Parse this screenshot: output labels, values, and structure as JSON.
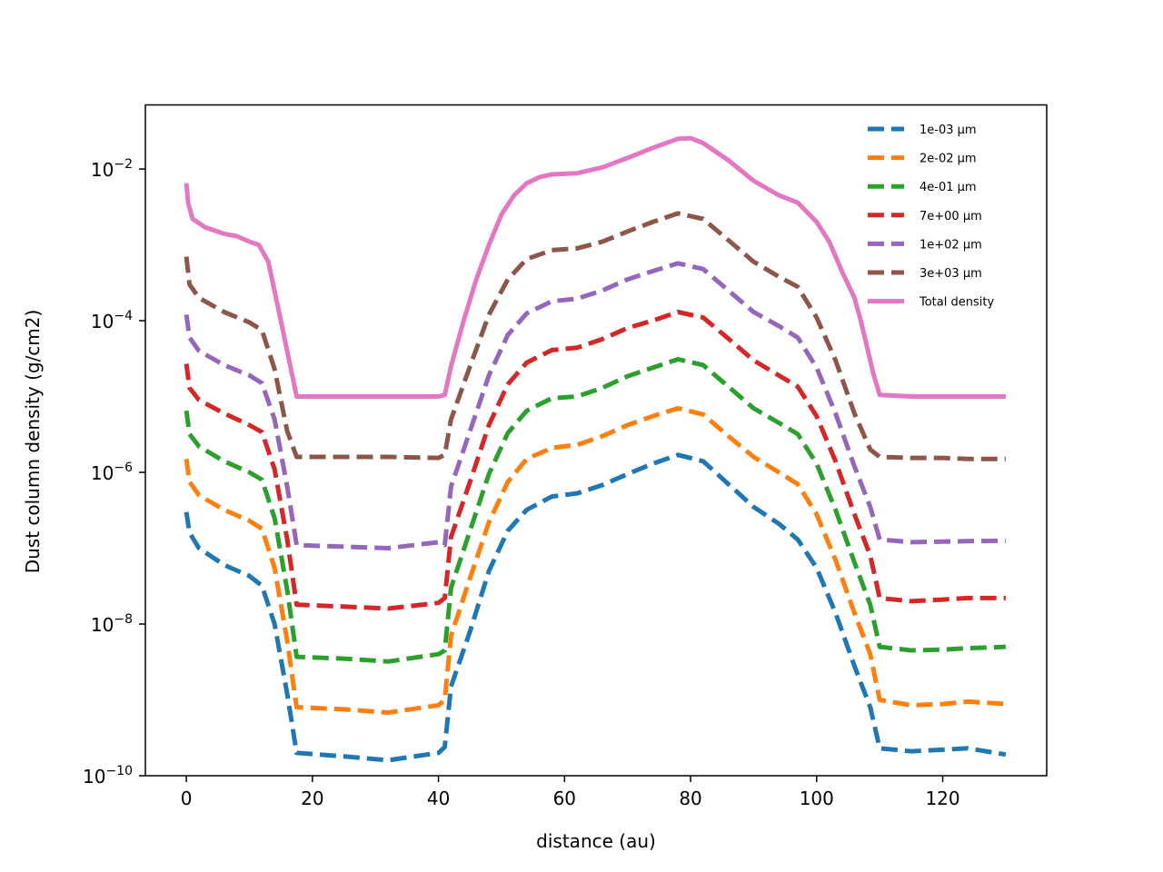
{
  "chart_data": {
    "type": "line",
    "title": "",
    "xlabel": "distance (au)",
    "ylabel": "Dust column density (g/cm2)",
    "xlim": [
      -6.5,
      136.5
    ],
    "ylim": [
      1e-10,
      0.07
    ],
    "yscale": "log",
    "x_ticks": [
      0,
      20,
      40,
      60,
      80,
      100,
      120
    ],
    "y_ticks": [
      {
        "value": 1e-10,
        "base": "10",
        "exp": "−10"
      },
      {
        "value": 1e-08,
        "base": "10",
        "exp": "−8"
      },
      {
        "value": 1e-06,
        "base": "10",
        "exp": "−6"
      },
      {
        "value": 0.0001,
        "base": "10",
        "exp": "−4"
      },
      {
        "value": 0.01,
        "base": "10",
        "exp": "−2"
      }
    ],
    "grid": false,
    "legend_position": "top-right",
    "series": [
      {
        "name": "1e-03 μm",
        "color": "#1f77b4",
        "style": "dashed",
        "points": [
          [
            0,
            3e-07
          ],
          [
            0.5,
            1.6e-07
          ],
          [
            2,
            1e-07
          ],
          [
            6,
            6e-08
          ],
          [
            10,
            4.3e-08
          ],
          [
            12,
            3.2e-08
          ],
          [
            14,
            1e-08
          ],
          [
            16,
            1.2e-09
          ],
          [
            17.5,
            2e-10
          ],
          [
            25,
            1.8e-10
          ],
          [
            32,
            1.6e-10
          ],
          [
            40,
            2e-10
          ],
          [
            41,
            2.4e-10
          ],
          [
            42,
            1.5e-09
          ],
          [
            45,
            8e-09
          ],
          [
            48,
            5e-08
          ],
          [
            51,
            1.7e-07
          ],
          [
            54,
            3.2e-07
          ],
          [
            58,
            4.8e-07
          ],
          [
            62,
            5.3e-07
          ],
          [
            66,
            6.8e-07
          ],
          [
            70,
            9.5e-07
          ],
          [
            74,
            1.3e-06
          ],
          [
            78,
            1.7e-06
          ],
          [
            82,
            1.4e-06
          ],
          [
            86,
            7e-07
          ],
          [
            90,
            3.5e-07
          ],
          [
            94,
            2.1e-07
          ],
          [
            97,
            1.3e-07
          ],
          [
            100,
            5.5e-08
          ],
          [
            103,
            1.4e-08
          ],
          [
            106,
            2.8e-09
          ],
          [
            108.5,
            8e-10
          ],
          [
            110,
            2.3e-10
          ],
          [
            115,
            2.1e-10
          ],
          [
            120,
            2.2e-10
          ],
          [
            124,
            2.3e-10
          ],
          [
            130,
            1.9e-10
          ]
        ]
      },
      {
        "name": "2e-02 μm",
        "color": "#ff7f0e",
        "style": "dashed",
        "points": [
          [
            0,
            1.5e-06
          ],
          [
            0.5,
            7.5e-07
          ],
          [
            2,
            5e-07
          ],
          [
            6,
            3.2e-07
          ],
          [
            10,
            2.3e-07
          ],
          [
            12,
            1.8e-07
          ],
          [
            14,
            5.5e-08
          ],
          [
            16,
            6e-09
          ],
          [
            17.5,
            8e-10
          ],
          [
            25,
            7.5e-10
          ],
          [
            32,
            6.8e-10
          ],
          [
            40,
            8.5e-10
          ],
          [
            41,
            1e-09
          ],
          [
            42,
            7e-09
          ],
          [
            45,
            4e-08
          ],
          [
            48,
            2.2e-07
          ],
          [
            51,
            7.5e-07
          ],
          [
            54,
            1.5e-06
          ],
          [
            58,
            2.1e-06
          ],
          [
            62,
            2.3e-06
          ],
          [
            66,
            3e-06
          ],
          [
            70,
            4.2e-06
          ],
          [
            74,
            5.5e-06
          ],
          [
            78,
            7e-06
          ],
          [
            82,
            5.8e-06
          ],
          [
            86,
            3e-06
          ],
          [
            90,
            1.6e-06
          ],
          [
            94,
            1e-06
          ],
          [
            97,
            7e-07
          ],
          [
            100,
            2.8e-07
          ],
          [
            103,
            7e-08
          ],
          [
            106,
            1.4e-08
          ],
          [
            108.5,
            4e-09
          ],
          [
            110,
            1e-09
          ],
          [
            115,
            8.5e-10
          ],
          [
            120,
            8.8e-10
          ],
          [
            124,
            9.5e-10
          ],
          [
            130,
            8.8e-10
          ]
        ]
      },
      {
        "name": "4e-01 μm",
        "color": "#2ca02c",
        "style": "dashed",
        "points": [
          [
            0,
            6.5e-06
          ],
          [
            0.5,
            3.2e-06
          ],
          [
            2,
            2.2e-06
          ],
          [
            6,
            1.4e-06
          ],
          [
            10,
            1e-06
          ],
          [
            12,
            8e-07
          ],
          [
            14,
            2.5e-07
          ],
          [
            16,
            2.8e-08
          ],
          [
            17.5,
            3.7e-09
          ],
          [
            25,
            3.5e-09
          ],
          [
            32,
            3.2e-09
          ],
          [
            40,
            4e-09
          ],
          [
            41,
            4.5e-09
          ],
          [
            42,
            3e-08
          ],
          [
            45,
            1.7e-07
          ],
          [
            48,
            9.5e-07
          ],
          [
            51,
            3.3e-06
          ],
          [
            54,
            6.5e-06
          ],
          [
            58,
            9.5e-06
          ],
          [
            62,
            1e-05
          ],
          [
            66,
            1.3e-05
          ],
          [
            70,
            1.85e-05
          ],
          [
            74,
            2.4e-05
          ],
          [
            78,
            3.1e-05
          ],
          [
            82,
            2.6e-05
          ],
          [
            86,
            1.35e-05
          ],
          [
            90,
            7e-06
          ],
          [
            94,
            4.5e-06
          ],
          [
            97,
            3.2e-06
          ],
          [
            100,
            1.3e-06
          ],
          [
            103,
            3.2e-07
          ],
          [
            106,
            6.5e-08
          ],
          [
            108.5,
            1.8e-08
          ],
          [
            110,
            5e-09
          ],
          [
            115,
            4.5e-09
          ],
          [
            120,
            4.6e-09
          ],
          [
            124,
            4.8e-09
          ],
          [
            130,
            5e-09
          ]
        ]
      },
      {
        "name": "7e+00 μm",
        "color": "#d62728",
        "style": "dashed",
        "points": [
          [
            0,
            2.7e-05
          ],
          [
            0.5,
            1.3e-05
          ],
          [
            2,
            9e-06
          ],
          [
            6,
            6e-06
          ],
          [
            10,
            4.2e-06
          ],
          [
            12,
            3.4e-06
          ],
          [
            14,
            1.1e-06
          ],
          [
            16,
            1.3e-07
          ],
          [
            17.5,
            1.8e-08
          ],
          [
            25,
            1.7e-08
          ],
          [
            32,
            1.6e-08
          ],
          [
            40,
            1.9e-08
          ],
          [
            41,
            2.2e-08
          ],
          [
            42,
            1.4e-07
          ],
          [
            45,
            7.5e-07
          ],
          [
            48,
            4.2e-06
          ],
          [
            51,
            1.45e-05
          ],
          [
            54,
            2.8e-05
          ],
          [
            58,
            4.1e-05
          ],
          [
            62,
            4.4e-05
          ],
          [
            66,
            5.7e-05
          ],
          [
            70,
            8e-05
          ],
          [
            74,
            0.0001
          ],
          [
            78,
            0.00013
          ],
          [
            82,
            0.00011
          ],
          [
            86,
            5.8e-05
          ],
          [
            90,
            3e-05
          ],
          [
            94,
            1.9e-05
          ],
          [
            97,
            1.35e-05
          ],
          [
            100,
            5.5e-06
          ],
          [
            103,
            1.4e-06
          ],
          [
            106,
            2.8e-07
          ],
          [
            108.5,
            8e-08
          ],
          [
            110,
            2.2e-08
          ],
          [
            115,
            2e-08
          ],
          [
            120,
            2.1e-08
          ],
          [
            124,
            2.2e-08
          ],
          [
            130,
            2.2e-08
          ]
        ]
      },
      {
        "name": "1e+02 μm",
        "color": "#9467bd",
        "style": "dashed",
        "points": [
          [
            0,
            0.00012
          ],
          [
            0.5,
            6e-05
          ],
          [
            2,
            4e-05
          ],
          [
            6,
            2.6e-05
          ],
          [
            10,
            1.9e-05
          ],
          [
            12,
            1.5e-05
          ],
          [
            14,
            5e-06
          ],
          [
            16,
            6.5e-07
          ],
          [
            17.5,
            1.1e-07
          ],
          [
            25,
            1.05e-07
          ],
          [
            32,
            1e-07
          ],
          [
            40,
            1.2e-07
          ],
          [
            41,
            1.1e-07
          ],
          [
            42,
            6.5e-07
          ],
          [
            45,
            3.5e-06
          ],
          [
            48,
            1.9e-05
          ],
          [
            51,
            6.5e-05
          ],
          [
            54,
            0.000125
          ],
          [
            58,
            0.00018
          ],
          [
            62,
            0.000195
          ],
          [
            66,
            0.00025
          ],
          [
            70,
            0.00035
          ],
          [
            74,
            0.00045
          ],
          [
            78,
            0.00057
          ],
          [
            82,
            0.00048
          ],
          [
            86,
            0.00025
          ],
          [
            90,
            0.00013
          ],
          [
            94,
            8.5e-05
          ],
          [
            97,
            6e-05
          ],
          [
            100,
            2.4e-05
          ],
          [
            103,
            6e-06
          ],
          [
            106,
            1.2e-06
          ],
          [
            108.5,
            3.5e-07
          ],
          [
            110,
            1.3e-07
          ],
          [
            115,
            1.2e-07
          ],
          [
            120,
            1.22e-07
          ],
          [
            124,
            1.24e-07
          ],
          [
            130,
            1.25e-07
          ]
        ]
      },
      {
        "name": "3e+03 μm",
        "color": "#8c564b",
        "style": "dashed",
        "points": [
          [
            0,
            0.0007
          ],
          [
            0.5,
            0.0003
          ],
          [
            2,
            0.0002
          ],
          [
            6,
            0.00013
          ],
          [
            10,
            9.5e-05
          ],
          [
            12,
            7.5e-05
          ],
          [
            14,
            2.3e-05
          ],
          [
            16,
            3.5e-06
          ],
          [
            17.5,
            1.6e-06
          ],
          [
            25,
            1.6e-06
          ],
          [
            32,
            1.6e-06
          ],
          [
            40,
            1.55e-06
          ],
          [
            41,
            1.7e-06
          ],
          [
            42,
            5e-06
          ],
          [
            45,
            2.5e-05
          ],
          [
            48,
            0.00012
          ],
          [
            51,
            0.00035
          ],
          [
            54,
            0.00065
          ],
          [
            58,
            0.00085
          ],
          [
            62,
            0.0009
          ],
          [
            66,
            0.0011
          ],
          [
            70,
            0.0015
          ],
          [
            74,
            0.002
          ],
          [
            78,
            0.0026
          ],
          [
            82,
            0.0022
          ],
          [
            86,
            0.00115
          ],
          [
            90,
            0.0006
          ],
          [
            94,
            0.00038
          ],
          [
            97,
            0.00028
          ],
          [
            100,
            0.00011
          ],
          [
            103,
            3e-05
          ],
          [
            106,
            6e-06
          ],
          [
            108.5,
            2e-06
          ],
          [
            110,
            1.6e-06
          ],
          [
            115,
            1.55e-06
          ],
          [
            120,
            1.55e-06
          ],
          [
            124,
            1.5e-06
          ],
          [
            130,
            1.5e-06
          ]
        ]
      },
      {
        "name": "Total density",
        "color": "#e377c2",
        "style": "solid",
        "points": [
          [
            0,
            0.0065
          ],
          [
            0.3,
            0.0035
          ],
          [
            1,
            0.0022
          ],
          [
            3,
            0.0017
          ],
          [
            6,
            0.0014
          ],
          [
            8,
            0.0013
          ],
          [
            10,
            0.0011
          ],
          [
            11.5,
            0.001
          ],
          [
            13,
            0.0006
          ],
          [
            15,
            0.0001
          ],
          [
            17.5,
            1e-05
          ],
          [
            25,
            1e-05
          ],
          [
            32,
            1e-05
          ],
          [
            40,
            1e-05
          ],
          [
            41,
            1.05e-05
          ],
          [
            42,
            2.5e-05
          ],
          [
            44,
            0.0001
          ],
          [
            46,
            0.00035
          ],
          [
            48,
            0.001
          ],
          [
            50,
            0.0025
          ],
          [
            52,
            0.0045
          ],
          [
            54,
            0.0065
          ],
          [
            56,
            0.0078
          ],
          [
            58,
            0.0085
          ],
          [
            62,
            0.0088
          ],
          [
            66,
            0.0105
          ],
          [
            70,
            0.014
          ],
          [
            74,
            0.019
          ],
          [
            78,
            0.025
          ],
          [
            80,
            0.0255
          ],
          [
            82,
            0.022
          ],
          [
            86,
            0.013
          ],
          [
            90,
            0.007
          ],
          [
            94,
            0.0045
          ],
          [
            97,
            0.0036
          ],
          [
            100,
            0.002
          ],
          [
            102,
            0.0011
          ],
          [
            104,
            0.00045
          ],
          [
            106,
            0.0002
          ],
          [
            107,
            0.0001
          ],
          [
            109,
            2e-05
          ],
          [
            110,
            1.05e-05
          ],
          [
            115,
            1e-05
          ],
          [
            120,
            1e-05
          ],
          [
            130,
            1e-05
          ]
        ]
      }
    ]
  }
}
